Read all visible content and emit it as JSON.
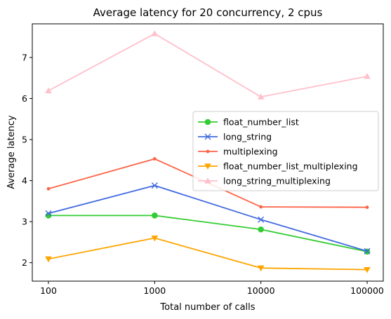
{
  "chart_data": {
    "type": "line",
    "title": "Average latency for 20 concurrency, 2 cpus",
    "xlabel": "Total number of calls",
    "ylabel": "Average latency",
    "categories": [
      "100",
      "1000",
      "10000",
      "100000"
    ],
    "yticks": [
      "2",
      "3",
      "4",
      "5",
      "6",
      "7"
    ],
    "ylim": [
      1.55,
      7.82
    ],
    "grid": false,
    "legend_position": "center-right",
    "series": [
      {
        "name": "float_number_list",
        "values": [
          3.15,
          3.15,
          2.81,
          2.27
        ],
        "color": "#32cd32",
        "marker": "circle"
      },
      {
        "name": "long_string",
        "values": [
          3.2,
          3.88,
          3.05,
          2.28
        ],
        "color": "#4169e1",
        "marker": "x"
      },
      {
        "name": "multiplexing",
        "values": [
          3.8,
          4.53,
          3.36,
          3.35
        ],
        "color": "#ff6347",
        "marker": "point"
      },
      {
        "name": "float_number_list_multiplexing",
        "values": [
          2.09,
          2.6,
          1.87,
          1.83
        ],
        "color": "#ffa500",
        "marker": "triangle-down"
      },
      {
        "name": "long_string_multiplexing",
        "values": [
          6.19,
          7.58,
          6.04,
          6.54
        ],
        "color": "#ffc0cb",
        "marker": "triangle-up"
      }
    ]
  }
}
